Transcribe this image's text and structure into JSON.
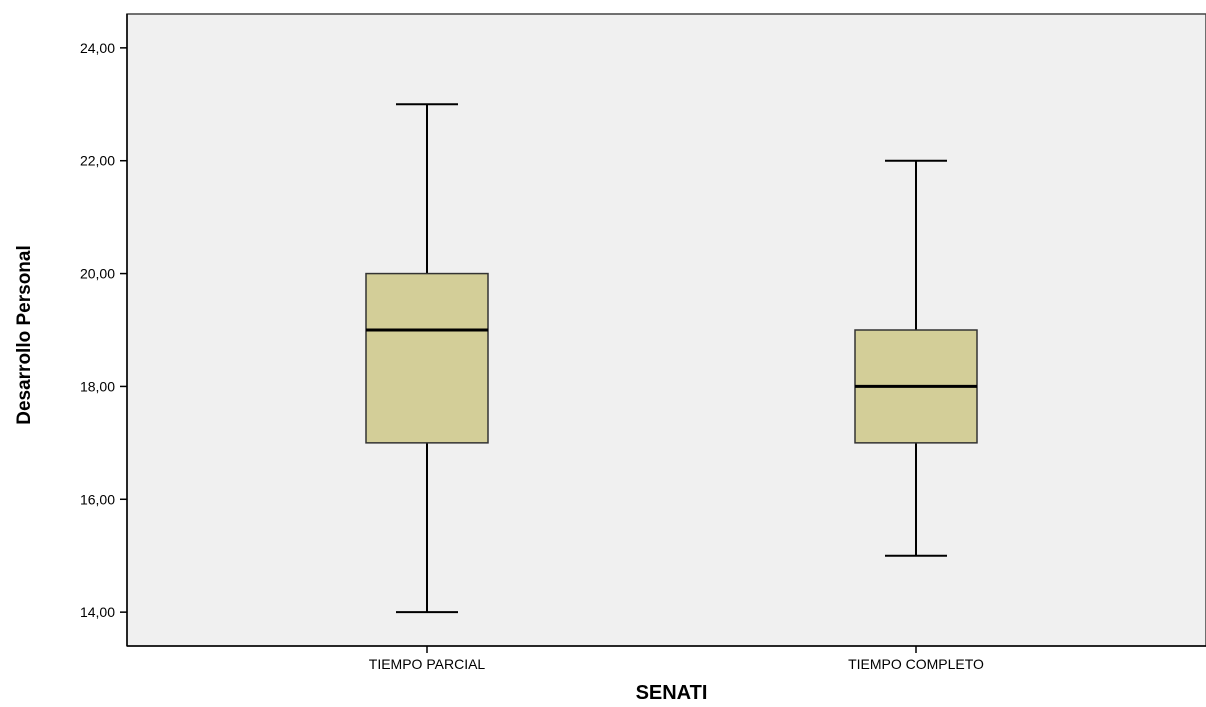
{
  "chart_data": {
    "type": "boxplot",
    "title": "",
    "xlabel": "SENATI",
    "ylabel": "Desarrollo Personal",
    "ylim": [
      13.4,
      24.6
    ],
    "yticks": [
      14,
      16,
      18,
      20,
      22,
      24
    ],
    "ytick_labels": [
      "14,00",
      "16,00",
      "18,00",
      "20,00",
      "22,00",
      "24,00"
    ],
    "categories": [
      "TIEMPO PARCIAL",
      "TIEMPO COMPLETO"
    ],
    "boxes": [
      {
        "category": "TIEMPO PARCIAL",
        "min": 14,
        "q1": 17,
        "median": 19,
        "q3": 20,
        "max": 23
      },
      {
        "category": "TIEMPO COMPLETO",
        "min": 15,
        "q1": 17,
        "median": 18,
        "q3": 19,
        "max": 22
      }
    ],
    "grid": false,
    "colors": {
      "plot_background": "#f0f0f0",
      "box_fill": "#d3ce98",
      "line": "#000000"
    }
  }
}
